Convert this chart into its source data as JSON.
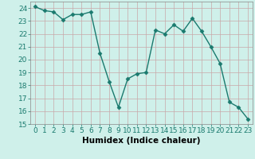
{
  "x": [
    0,
    1,
    2,
    3,
    4,
    5,
    6,
    7,
    8,
    9,
    10,
    11,
    12,
    13,
    14,
    15,
    16,
    17,
    18,
    19,
    20,
    21,
    22,
    23
  ],
  "y": [
    24.1,
    23.8,
    23.7,
    23.1,
    23.5,
    23.5,
    23.7,
    20.5,
    18.3,
    16.3,
    18.5,
    18.9,
    19.0,
    22.3,
    22.0,
    22.7,
    22.2,
    23.2,
    22.2,
    21.0,
    19.7,
    16.7,
    16.3,
    15.4
  ],
  "line_color": "#1a7a6e",
  "marker": "D",
  "marker_size": 2.5,
  "bg_color": "#cff0ea",
  "grid_color": "#c8a8a8",
  "xlabel": "Humidex (Indice chaleur)",
  "ylim": [
    15,
    24.5
  ],
  "xlim": [
    -0.5,
    23.5
  ],
  "yticks": [
    15,
    16,
    17,
    18,
    19,
    20,
    21,
    22,
    23,
    24
  ],
  "xticks": [
    0,
    1,
    2,
    3,
    4,
    5,
    6,
    7,
    8,
    9,
    10,
    11,
    12,
    13,
    14,
    15,
    16,
    17,
    18,
    19,
    20,
    21,
    22,
    23
  ],
  "xlabel_fontsize": 7.5,
  "tick_fontsize": 6.5,
  "linewidth": 1.0
}
